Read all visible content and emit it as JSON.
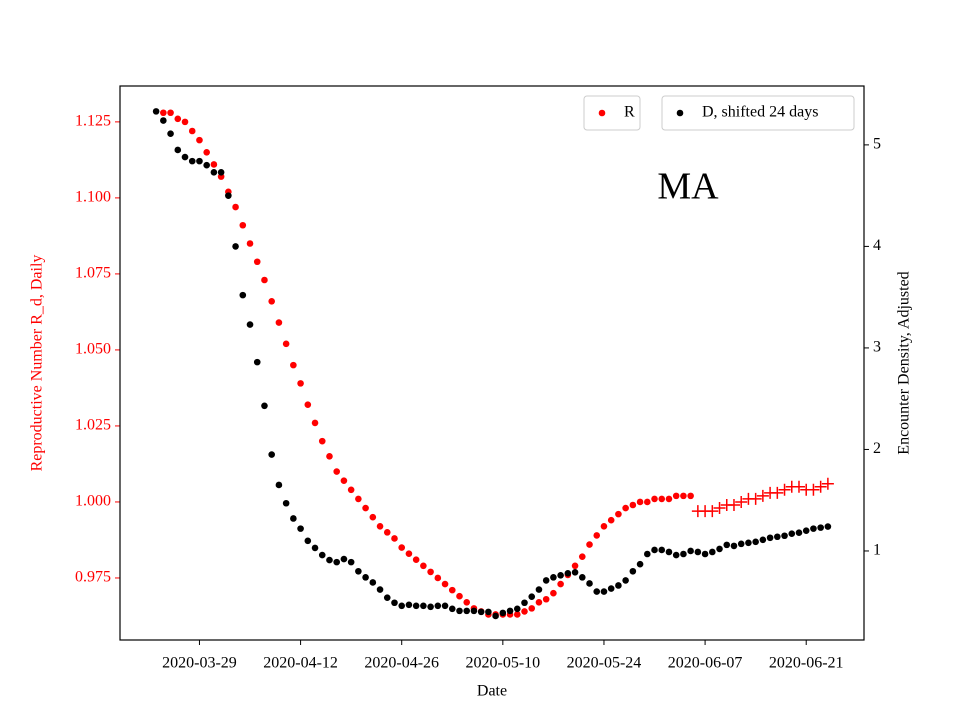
{
  "chart_data": {
    "type": "scatter",
    "annotation": "MA",
    "xlabel": "Date",
    "ylabel": "Reproductive Number R_d, Daily",
    "y2label": "Encounter Density, Adjusted",
    "x": [
      "2020-03-23",
      "2020-03-24",
      "2020-03-25",
      "2020-03-26",
      "2020-03-27",
      "2020-03-28",
      "2020-03-29",
      "2020-03-30",
      "2020-03-31",
      "2020-04-01",
      "2020-04-02",
      "2020-04-03",
      "2020-04-04",
      "2020-04-05",
      "2020-04-06",
      "2020-04-07",
      "2020-04-08",
      "2020-04-09",
      "2020-04-10",
      "2020-04-11",
      "2020-04-12",
      "2020-04-13",
      "2020-04-14",
      "2020-04-15",
      "2020-04-16",
      "2020-04-17",
      "2020-04-18",
      "2020-04-19",
      "2020-04-20",
      "2020-04-21",
      "2020-04-22",
      "2020-04-23",
      "2020-04-24",
      "2020-04-25",
      "2020-04-26",
      "2020-04-27",
      "2020-04-28",
      "2020-04-29",
      "2020-04-30",
      "2020-05-01",
      "2020-05-02",
      "2020-05-03",
      "2020-05-04",
      "2020-05-05",
      "2020-05-06",
      "2020-05-07",
      "2020-05-08",
      "2020-05-09",
      "2020-05-10",
      "2020-05-11",
      "2020-05-12",
      "2020-05-13",
      "2020-05-14",
      "2020-05-15",
      "2020-05-16",
      "2020-05-17",
      "2020-05-18",
      "2020-05-19",
      "2020-05-20",
      "2020-05-21",
      "2020-05-22",
      "2020-05-23",
      "2020-05-24",
      "2020-05-25",
      "2020-05-26",
      "2020-05-27",
      "2020-05-28",
      "2020-05-29",
      "2020-05-30",
      "2020-05-31",
      "2020-06-01",
      "2020-06-02",
      "2020-06-03",
      "2020-06-04",
      "2020-06-05",
      "2020-06-06",
      "2020-06-07",
      "2020-06-08",
      "2020-06-09",
      "2020-06-10",
      "2020-06-11",
      "2020-06-12",
      "2020-06-13",
      "2020-06-14",
      "2020-06-15",
      "2020-06-16",
      "2020-06-17",
      "2020-06-18",
      "2020-06-19",
      "2020-06-20",
      "2020-06-21",
      "2020-06-22",
      "2020-06-23",
      "2020-06-24"
    ],
    "xlim": [
      "2020-03-18",
      "2020-06-29"
    ],
    "xticks": [
      "2020-03-29",
      "2020-04-12",
      "2020-04-26",
      "2020-05-10",
      "2020-05-24",
      "2020-06-07",
      "2020-06-21"
    ],
    "ylim": [
      0.9546,
      1.1368
    ],
    "yticks": [
      0.975,
      {
        "value": 1.0,
        "label": "1.000"
      },
      1.025,
      {
        "value": 1.05,
        "label": "1.050"
      },
      1.075,
      {
        "value": 1.1,
        "label": "1.100"
      },
      1.125
    ],
    "y2lim": [
      0.123,
      5.58
    ],
    "y2ticks": [
      1,
      2,
      3,
      4,
      5
    ],
    "legend_loc": "upper center",
    "legend2_loc": "upper right",
    "series": [
      {
        "name": "R",
        "color": "#ff0000",
        "marker": "o",
        "values": [
          null,
          1.128,
          1.128,
          1.126,
          1.125,
          1.122,
          1.119,
          1.115,
          1.111,
          1.107,
          1.102,
          1.097,
          1.091,
          1.085,
          1.079,
          1.073,
          1.066,
          1.059,
          1.052,
          1.045,
          1.039,
          1.032,
          1.026,
          1.02,
          1.015,
          1.01,
          1.007,
          1.004,
          1.001,
          0.998,
          0.995,
          0.992,
          0.99,
          0.988,
          0.985,
          0.983,
          0.981,
          0.979,
          0.977,
          0.975,
          0.973,
          0.971,
          0.969,
          0.967,
          0.965,
          0.964,
          0.963,
          0.963,
          0.963,
          0.963,
          0.963,
          0.964,
          0.965,
          0.967,
          0.968,
          0.97,
          0.973,
          0.976,
          0.979,
          0.982,
          0.986,
          0.989,
          0.992,
          0.994,
          0.996,
          0.998,
          0.999,
          1.0,
          1.0,
          1.001,
          1.001,
          1.001,
          1.002,
          1.002,
          1.002,
          null,
          null,
          null,
          null,
          null,
          null,
          null,
          null,
          null,
          null,
          null,
          null,
          null,
          null,
          null,
          null,
          null,
          null,
          null
        ]
      },
      {
        "color": "#ff0000",
        "marker": "+",
        "values": [
          null,
          null,
          null,
          null,
          null,
          null,
          null,
          null,
          null,
          null,
          null,
          null,
          null,
          null,
          null,
          null,
          null,
          null,
          null,
          null,
          null,
          null,
          null,
          null,
          null,
          null,
          null,
          null,
          null,
          null,
          null,
          null,
          null,
          null,
          null,
          null,
          null,
          null,
          null,
          null,
          null,
          null,
          null,
          null,
          null,
          null,
          null,
          null,
          null,
          null,
          null,
          null,
          null,
          null,
          null,
          null,
          null,
          null,
          null,
          null,
          null,
          null,
          null,
          null,
          null,
          null,
          null,
          null,
          null,
          null,
          null,
          null,
          null,
          null,
          null,
          0.997,
          0.997,
          0.997,
          0.998,
          0.999,
          0.999,
          1.0,
          1.001,
          1.001,
          1.002,
          1.003,
          1.003,
          1.004,
          1.005,
          1.005,
          1.004,
          1.004,
          1.005,
          1.006
        ]
      },
      {
        "name": "D, shifted 24 days",
        "color": "#000000",
        "marker": "o",
        "axis": "y2",
        "values": [
          5.33,
          5.24,
          5.11,
          4.95,
          4.88,
          4.84,
          4.84,
          4.8,
          4.73,
          4.73,
          4.5,
          4.0,
          3.52,
          3.23,
          2.86,
          2.43,
          1.95,
          1.65,
          1.47,
          1.32,
          1.22,
          1.1,
          1.03,
          0.96,
          0.91,
          0.89,
          0.92,
          0.89,
          0.8,
          0.74,
          0.69,
          0.62,
          0.54,
          0.49,
          0.46,
          0.47,
          0.46,
          0.46,
          0.45,
          0.46,
          0.46,
          0.43,
          0.41,
          0.41,
          0.41,
          0.4,
          0.4,
          0.36,
          0.39,
          0.41,
          0.43,
          0.49,
          0.55,
          0.62,
          0.71,
          0.74,
          0.76,
          0.78,
          0.79,
          0.74,
          0.68,
          0.6,
          0.6,
          0.63,
          0.66,
          0.71,
          0.8,
          0.87,
          0.97,
          1.01,
          1.01,
          0.99,
          0.96,
          0.97,
          1.0,
          0.99,
          0.97,
          0.99,
          1.02,
          1.06,
          1.05,
          1.07,
          1.08,
          1.09,
          1.11,
          1.13,
          1.14,
          1.15,
          1.17,
          1.18,
          1.2,
          1.22,
          1.23,
          1.24
        ]
      }
    ]
  }
}
